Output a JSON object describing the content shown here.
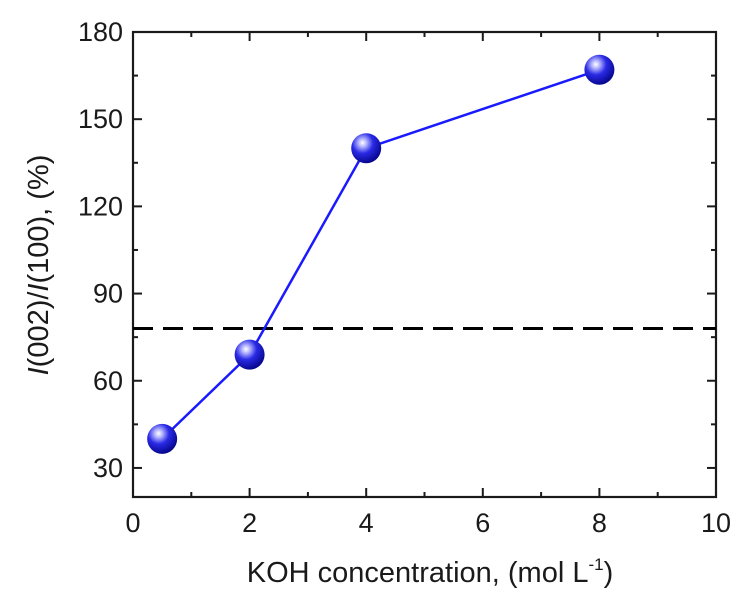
{
  "chart_data": {
    "type": "line",
    "x": [
      0.5,
      2,
      4,
      8
    ],
    "series": [
      {
        "values": [
          40,
          69,
          140,
          167
        ],
        "color": "#1a1aff",
        "marker": "sphere"
      }
    ],
    "reference_line": {
      "y": 78,
      "style": "dashed",
      "color": "#000000"
    },
    "xlabel": {
      "main": "KOH concentration, (mol L",
      "sup": "-1",
      "close": ")"
    },
    "ylabel": {
      "i1": "I",
      "mid1": "(002)/",
      "i2": "I",
      "mid2": "(100), (%)"
    },
    "xlim": [
      0,
      10
    ],
    "ylim": [
      20,
      180
    ],
    "xticks": [
      "0",
      "2",
      "4",
      "6",
      "8",
      "10"
    ],
    "yticks": [
      "30",
      "60",
      "90",
      "120",
      "150",
      "180"
    ],
    "grid": false,
    "legend": "none"
  }
}
